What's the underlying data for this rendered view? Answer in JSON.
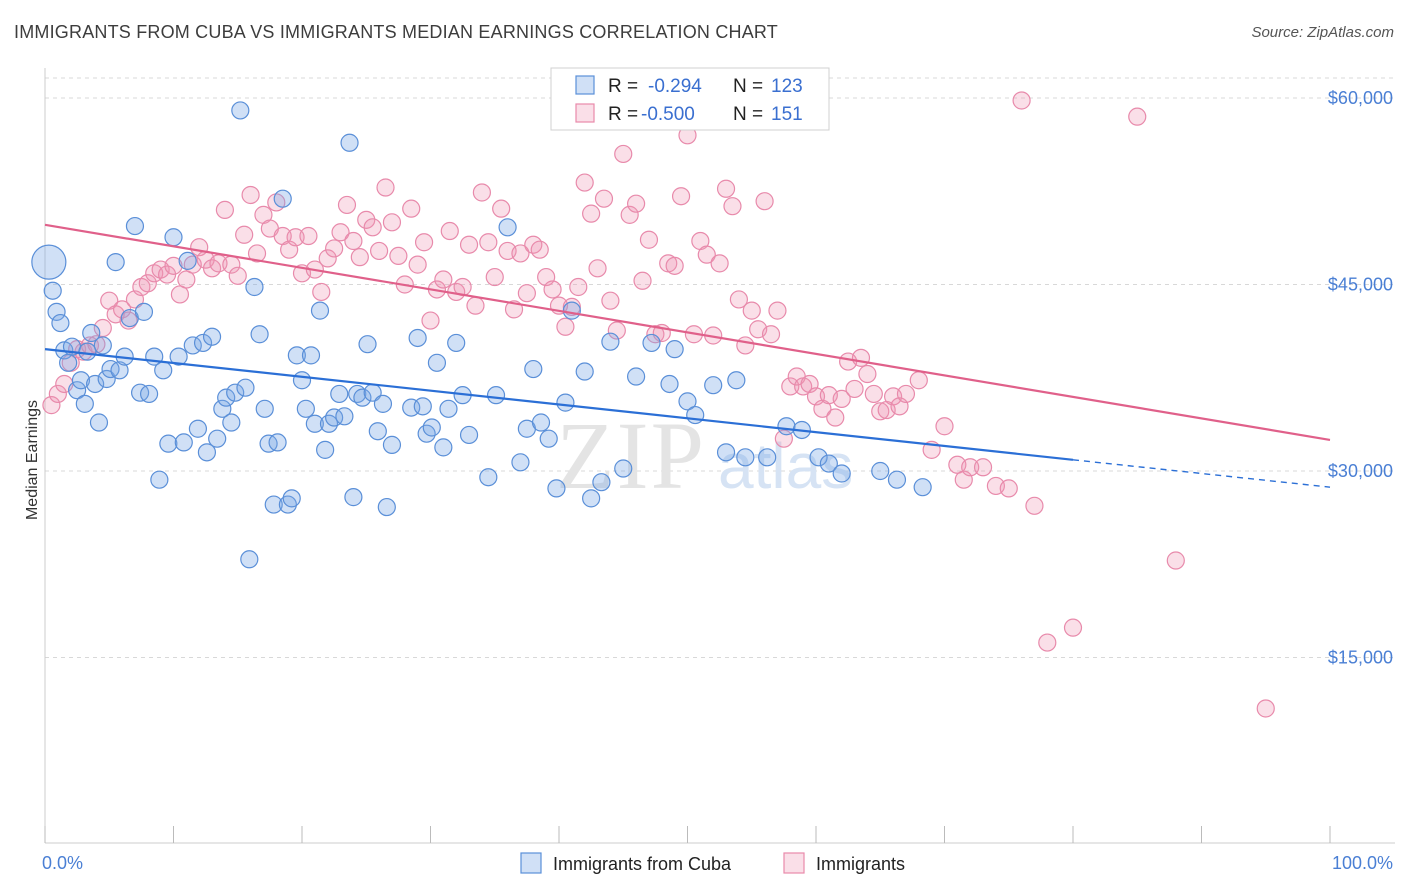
{
  "title": "IMMIGRANTS FROM CUBA VS IMMIGRANTS MEDIAN EARNINGS CORRELATION CHART",
  "source": "Source: ZipAtlas.com",
  "watermark": {
    "zip": "ZIP",
    "atlas": "atlas"
  },
  "colors": {
    "cuba_fill": "rgba(120,165,230,0.35)",
    "cuba_stroke": "#5a8fd8",
    "cuba_line": "#2b6fd6",
    "imm_fill": "rgba(240,150,180,0.30)",
    "imm_stroke": "#e88aab",
    "imm_line": "#e0608a",
    "grid": "#d8d8d8",
    "tick_label": "#4a7fd4"
  },
  "legend": {
    "r_label": "R =",
    "n_label": "N =",
    "items": [
      {
        "r": "-0.294",
        "n": "123"
      },
      {
        "r": "-0.500",
        "n": "151"
      }
    ]
  },
  "chart_data": {
    "type": "scatter",
    "title": "IMMIGRANTS FROM CUBA VS IMMIGRANTS MEDIAN EARNINGS CORRELATION CHART",
    "xlabel": "",
    "ylabel": "Median Earnings",
    "xlim": [
      0,
      100
    ],
    "ylim": [
      0,
      63000
    ],
    "x_tick_labels": [
      "0.0%",
      "100.0%"
    ],
    "y_ticks": [
      15000,
      30000,
      45000,
      60000
    ],
    "y_tick_labels": [
      "$15,000",
      "$30,000",
      "$45,000",
      "$60,000"
    ],
    "grid": true,
    "legend_position": "top-center",
    "series": [
      {
        "name": "Immigrants from Cuba",
        "trend": {
          "x0": 0,
          "y0": 39800,
          "x1": 80,
          "y1": 30900,
          "x_dash_end": 100,
          "y_dash_end": 28700
        },
        "points": [
          [
            0.3,
            46800
          ],
          [
            0.6,
            44500
          ],
          [
            0.9,
            42800
          ],
          [
            1.2,
            41900
          ],
          [
            1.5,
            39700
          ],
          [
            1.8,
            38700
          ],
          [
            2.1,
            40000
          ],
          [
            2.5,
            36500
          ],
          [
            2.8,
            37300
          ],
          [
            3.1,
            35400
          ],
          [
            3.3,
            39600
          ],
          [
            3.6,
            41100
          ],
          [
            3.9,
            37000
          ],
          [
            4.2,
            33900
          ],
          [
            4.5,
            40100
          ],
          [
            4.8,
            37400
          ],
          [
            5.1,
            38200
          ],
          [
            5.5,
            46800
          ],
          [
            5.8,
            38100
          ],
          [
            6.2,
            39200
          ],
          [
            6.6,
            42300
          ],
          [
            7.0,
            49700
          ],
          [
            7.4,
            36300
          ],
          [
            7.7,
            42800
          ],
          [
            8.1,
            36200
          ],
          [
            8.5,
            39200
          ],
          [
            8.9,
            29300
          ],
          [
            9.2,
            38100
          ],
          [
            9.6,
            32200
          ],
          [
            10.0,
            48800
          ],
          [
            10.4,
            39200
          ],
          [
            10.8,
            32300
          ],
          [
            11.1,
            46900
          ],
          [
            11.5,
            40100
          ],
          [
            11.9,
            33400
          ],
          [
            12.3,
            40300
          ],
          [
            12.6,
            31500
          ],
          [
            13.0,
            40800
          ],
          [
            13.4,
            32600
          ],
          [
            13.8,
            35000
          ],
          [
            14.1,
            35900
          ],
          [
            14.5,
            33900
          ],
          [
            14.8,
            36300
          ],
          [
            15.2,
            59000
          ],
          [
            15.6,
            36700
          ],
          [
            15.9,
            22900
          ],
          [
            16.3,
            44800
          ],
          [
            16.7,
            41000
          ],
          [
            17.1,
            35000
          ],
          [
            17.4,
            32200
          ],
          [
            17.8,
            27300
          ],
          [
            18.1,
            32300
          ],
          [
            18.5,
            51900
          ],
          [
            18.9,
            27300
          ],
          [
            19.2,
            27800
          ],
          [
            19.6,
            39300
          ],
          [
            20.0,
            37300
          ],
          [
            20.3,
            35000
          ],
          [
            20.7,
            39300
          ],
          [
            21.0,
            33800
          ],
          [
            21.4,
            42900
          ],
          [
            21.8,
            31700
          ],
          [
            22.1,
            33800
          ],
          [
            22.5,
            34300
          ],
          [
            22.9,
            36200
          ],
          [
            23.3,
            34400
          ],
          [
            23.7,
            56400
          ],
          [
            24.0,
            27900
          ],
          [
            24.3,
            36200
          ],
          [
            24.7,
            35900
          ],
          [
            25.1,
            40200
          ],
          [
            25.5,
            36300
          ],
          [
            25.9,
            33200
          ],
          [
            26.3,
            35400
          ],
          [
            26.6,
            27100
          ],
          [
            27.0,
            32100
          ],
          [
            28.5,
            35100
          ],
          [
            29.0,
            40700
          ],
          [
            29.4,
            35200
          ],
          [
            29.7,
            33000
          ],
          [
            30.1,
            33500
          ],
          [
            30.5,
            38700
          ],
          [
            31.0,
            31900
          ],
          [
            31.4,
            35000
          ],
          [
            32.0,
            40300
          ],
          [
            32.5,
            36100
          ],
          [
            33.0,
            32900
          ],
          [
            34.5,
            29500
          ],
          [
            35.1,
            36100
          ],
          [
            36.0,
            49600
          ],
          [
            37.0,
            30700
          ],
          [
            37.5,
            33400
          ],
          [
            38.0,
            38200
          ],
          [
            38.6,
            33900
          ],
          [
            39.2,
            32600
          ],
          [
            39.8,
            28600
          ],
          [
            40.5,
            35500
          ],
          [
            41.0,
            42900
          ],
          [
            42.0,
            38000
          ],
          [
            42.5,
            27800
          ],
          [
            43.3,
            29100
          ],
          [
            44.0,
            40400
          ],
          [
            45.0,
            30200
          ],
          [
            46.0,
            37600
          ],
          [
            47.2,
            40300
          ],
          [
            48.6,
            37000
          ],
          [
            49.0,
            39800
          ],
          [
            50.0,
            35600
          ],
          [
            50.6,
            34500
          ],
          [
            52.0,
            36900
          ],
          [
            53.0,
            31500
          ],
          [
            53.8,
            37300
          ],
          [
            54.5,
            31100
          ],
          [
            56.2,
            31100
          ],
          [
            57.7,
            33600
          ],
          [
            58.9,
            33300
          ],
          [
            60.2,
            31100
          ],
          [
            61.0,
            30600
          ],
          [
            62.0,
            29800
          ],
          [
            65.0,
            30000
          ],
          [
            66.3,
            29300
          ],
          [
            68.3,
            28700
          ]
        ]
      },
      {
        "name": "Immigrants",
        "trend": {
          "x0": 0,
          "y0": 49800,
          "x1": 100,
          "y1": 32500
        },
        "points": [
          [
            0.5,
            35300
          ],
          [
            1.0,
            36200
          ],
          [
            1.5,
            37000
          ],
          [
            2.0,
            38700
          ],
          [
            2.5,
            39800
          ],
          [
            3.0,
            39600
          ],
          [
            3.5,
            40100
          ],
          [
            4.0,
            40200
          ],
          [
            4.5,
            41500
          ],
          [
            5.0,
            43700
          ],
          [
            5.5,
            42600
          ],
          [
            6.0,
            43000
          ],
          [
            6.5,
            42100
          ],
          [
            7.0,
            43800
          ],
          [
            7.5,
            44800
          ],
          [
            8.0,
            45100
          ],
          [
            8.5,
            45900
          ],
          [
            9.0,
            46200
          ],
          [
            9.5,
            45800
          ],
          [
            10.0,
            46500
          ],
          [
            10.5,
            44200
          ],
          [
            11.0,
            45400
          ],
          [
            11.5,
            46600
          ],
          [
            12.0,
            48000
          ],
          [
            12.5,
            47000
          ],
          [
            13.0,
            46300
          ],
          [
            13.5,
            46700
          ],
          [
            14.0,
            51000
          ],
          [
            14.5,
            46600
          ],
          [
            15.0,
            45700
          ],
          [
            15.5,
            49000
          ],
          [
            16.0,
            52200
          ],
          [
            16.5,
            47500
          ],
          [
            17.0,
            50600
          ],
          [
            17.5,
            49500
          ],
          [
            18.0,
            51600
          ],
          [
            18.5,
            48900
          ],
          [
            19.0,
            47800
          ],
          [
            19.5,
            48800
          ],
          [
            20.0,
            45900
          ],
          [
            20.5,
            48900
          ],
          [
            21.0,
            46200
          ],
          [
            21.5,
            44400
          ],
          [
            22.0,
            47100
          ],
          [
            22.5,
            47900
          ],
          [
            23.0,
            49200
          ],
          [
            23.5,
            51400
          ],
          [
            24.0,
            48500
          ],
          [
            24.5,
            47200
          ],
          [
            25.0,
            50200
          ],
          [
            25.5,
            49600
          ],
          [
            26.0,
            47700
          ],
          [
            26.5,
            52800
          ],
          [
            27.0,
            50000
          ],
          [
            27.5,
            47300
          ],
          [
            28.0,
            45000
          ],
          [
            28.5,
            51100
          ],
          [
            29.0,
            46600
          ],
          [
            29.5,
            48400
          ],
          [
            30.0,
            42100
          ],
          [
            30.5,
            44600
          ],
          [
            31.0,
            45400
          ],
          [
            31.5,
            49300
          ],
          [
            32.0,
            44400
          ],
          [
            32.5,
            44800
          ],
          [
            33.0,
            48200
          ],
          [
            33.5,
            43300
          ],
          [
            34.0,
            52400
          ],
          [
            34.5,
            48400
          ],
          [
            35.0,
            45600
          ],
          [
            35.5,
            51100
          ],
          [
            36.0,
            47700
          ],
          [
            36.5,
            43000
          ],
          [
            37.0,
            47500
          ],
          [
            37.5,
            44300
          ],
          [
            38.0,
            48200
          ],
          [
            38.5,
            47800
          ],
          [
            39.0,
            45600
          ],
          [
            39.5,
            44600
          ],
          [
            40.0,
            43300
          ],
          [
            40.5,
            41600
          ],
          [
            41.0,
            43200
          ],
          [
            41.5,
            44800
          ],
          [
            42.0,
            53200
          ],
          [
            42.5,
            50700
          ],
          [
            43.0,
            46300
          ],
          [
            43.5,
            51900
          ],
          [
            44.0,
            43700
          ],
          [
            44.5,
            41300
          ],
          [
            45.0,
            55500
          ],
          [
            45.5,
            50600
          ],
          [
            46.0,
            51500
          ],
          [
            46.5,
            45300
          ],
          [
            47.0,
            48600
          ],
          [
            47.5,
            41000
          ],
          [
            48.0,
            41100
          ],
          [
            48.5,
            46700
          ],
          [
            49.0,
            46500
          ],
          [
            49.5,
            52100
          ],
          [
            50.0,
            57000
          ],
          [
            50.5,
            41000
          ],
          [
            51.0,
            48500
          ],
          [
            51.5,
            47400
          ],
          [
            52.0,
            40900
          ],
          [
            52.5,
            46700
          ],
          [
            53.0,
            52700
          ],
          [
            53.5,
            51300
          ],
          [
            54.0,
            43800
          ],
          [
            54.5,
            40100
          ],
          [
            55.0,
            42900
          ],
          [
            55.5,
            41400
          ],
          [
            56.0,
            51700
          ],
          [
            56.5,
            41000
          ],
          [
            57.0,
            42900
          ],
          [
            57.5,
            32600
          ],
          [
            58.0,
            36800
          ],
          [
            58.5,
            37600
          ],
          [
            59.0,
            36800
          ],
          [
            59.5,
            37000
          ],
          [
            60.0,
            36000
          ],
          [
            60.5,
            35000
          ],
          [
            61.0,
            36100
          ],
          [
            61.5,
            34300
          ],
          [
            62.0,
            35800
          ],
          [
            62.5,
            38800
          ],
          [
            63.0,
            36600
          ],
          [
            63.5,
            39100
          ],
          [
            64.0,
            37800
          ],
          [
            64.5,
            36200
          ],
          [
            65.0,
            34800
          ],
          [
            65.5,
            34900
          ],
          [
            66.0,
            36000
          ],
          [
            66.5,
            35200
          ],
          [
            67.0,
            36200
          ],
          [
            68.0,
            37300
          ],
          [
            69.0,
            31700
          ],
          [
            70.0,
            33600
          ],
          [
            71.0,
            30500
          ],
          [
            71.5,
            29300
          ],
          [
            72.0,
            30300
          ],
          [
            73.0,
            30300
          ],
          [
            74.0,
            28800
          ],
          [
            75.0,
            28600
          ],
          [
            76.0,
            59800
          ],
          [
            77.0,
            27200
          ],
          [
            78.0,
            16200
          ],
          [
            80.0,
            17400
          ],
          [
            85.0,
            58500
          ],
          [
            88.0,
            22800
          ],
          [
            95.0,
            10900
          ]
        ]
      }
    ]
  },
  "bottom_legend": [
    "Immigrants from Cuba",
    "Immigrants"
  ]
}
